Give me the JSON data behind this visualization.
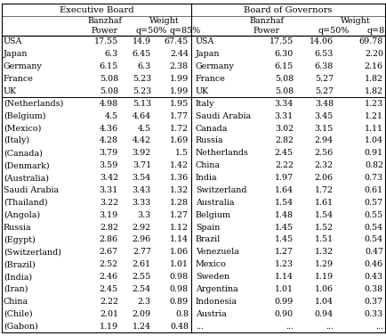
{
  "exec_rows": [
    [
      "USA",
      "17.55",
      "14.9",
      "67.45"
    ],
    [
      "Japan",
      "6.3",
      "6.45",
      "2.44"
    ],
    [
      "Germany",
      "6.15",
      "6.3",
      "2.38"
    ],
    [
      "France",
      "5.08",
      "5.23",
      "1.99"
    ],
    [
      "UK",
      "5.08",
      "5.23",
      "1.99"
    ],
    [
      "(Netherlands)",
      "4.98",
      "5.13",
      "1.95"
    ],
    [
      "(Belgium)",
      "4.5",
      "4.64",
      "1.77"
    ],
    [
      "(Mexico)",
      "4.36",
      "4.5",
      "1.72"
    ],
    [
      "(Italy)",
      "4.28",
      "4.42",
      "1.69"
    ],
    [
      "(Canada)",
      "3.79",
      "3.92",
      "1.5"
    ],
    [
      "(Denmark)",
      "3.59",
      "3.71",
      "1.42"
    ],
    [
      "(Australia)",
      "3.42",
      "3.54",
      "1.36"
    ],
    [
      "Saudi Arabia",
      "3.31",
      "3.43",
      "1.32"
    ],
    [
      "(Thailand)",
      "3.22",
      "3.33",
      "1.28"
    ],
    [
      "(Angola)",
      "3.19",
      "3.3",
      "1.27"
    ],
    [
      "Russia",
      "2.82",
      "2.92",
      "1.12"
    ],
    [
      "(Egypt)",
      "2.86",
      "2.96",
      "1.14"
    ],
    [
      "(Switzerland)",
      "2.67",
      "2.77",
      "1.06"
    ],
    [
      "(Brazil)",
      "2.52",
      "2.61",
      "1.01"
    ],
    [
      "(India)",
      "2.46",
      "2.55",
      "0.98"
    ],
    [
      "(Iran)",
      "2.45",
      "2.54",
      "0.98"
    ],
    [
      "China",
      "2.22",
      "2.3",
      "0.89"
    ],
    [
      "(Chile)",
      "2.01",
      "2.09",
      "0.8"
    ],
    [
      "(Gabon)",
      "1.19",
      "1.24",
      "0.48"
    ]
  ],
  "bog_rows": [
    [
      "USA",
      "17.55",
      "14.06",
      "69.78"
    ],
    [
      "Japan",
      "6.30",
      "6.53",
      "2.20"
    ],
    [
      "Germany",
      "6.15",
      "6.38",
      "2.16"
    ],
    [
      "France",
      "5.08",
      "5.27",
      "1.82"
    ],
    [
      "UK",
      "5.08",
      "5.27",
      "1.82"
    ],
    [
      "Italy",
      "3.34",
      "3.48",
      "1.23"
    ],
    [
      "Saudi Arabia",
      "3.31",
      "3.45",
      "1.21"
    ],
    [
      "Canada",
      "3.02",
      "3.15",
      "1.11"
    ],
    [
      "Russia",
      "2.82",
      "2.94",
      "1.04"
    ],
    [
      "Netherlands",
      "2.45",
      "2.56",
      "0.91"
    ],
    [
      "China",
      "2.22",
      "2.32",
      "0.82"
    ],
    [
      "India",
      "1.97",
      "2.06",
      "0.73"
    ],
    [
      "Switzerland",
      "1.64",
      "1.72",
      "0.61"
    ],
    [
      "Australia",
      "1.54",
      "1.61",
      "0.57"
    ],
    [
      "Belgium",
      "1.48",
      "1.54",
      "0.55"
    ],
    [
      "Spain",
      "1.45",
      "1.52",
      "0.54"
    ],
    [
      "Brazil",
      "1.45",
      "1.51",
      "0.54"
    ],
    [
      "Venezuela",
      "1.27",
      "1.32",
      "0.47"
    ],
    [
      "Mexico",
      "1.23",
      "1.29",
      "0.46"
    ],
    [
      "Sweden",
      "1.14",
      "1.19",
      "0.43"
    ],
    [
      "Argentina",
      "1.01",
      "1.06",
      "0.38"
    ],
    [
      "Indonesia",
      "0.99",
      "1.04",
      "0.37"
    ],
    [
      "Austria",
      "0.90",
      "0.94",
      "0.33"
    ],
    [
      "...",
      "...",
      "...",
      "..."
    ]
  ],
  "bg_color": "#ffffff",
  "font_size": 6.8,
  "header_font_size": 7.2
}
